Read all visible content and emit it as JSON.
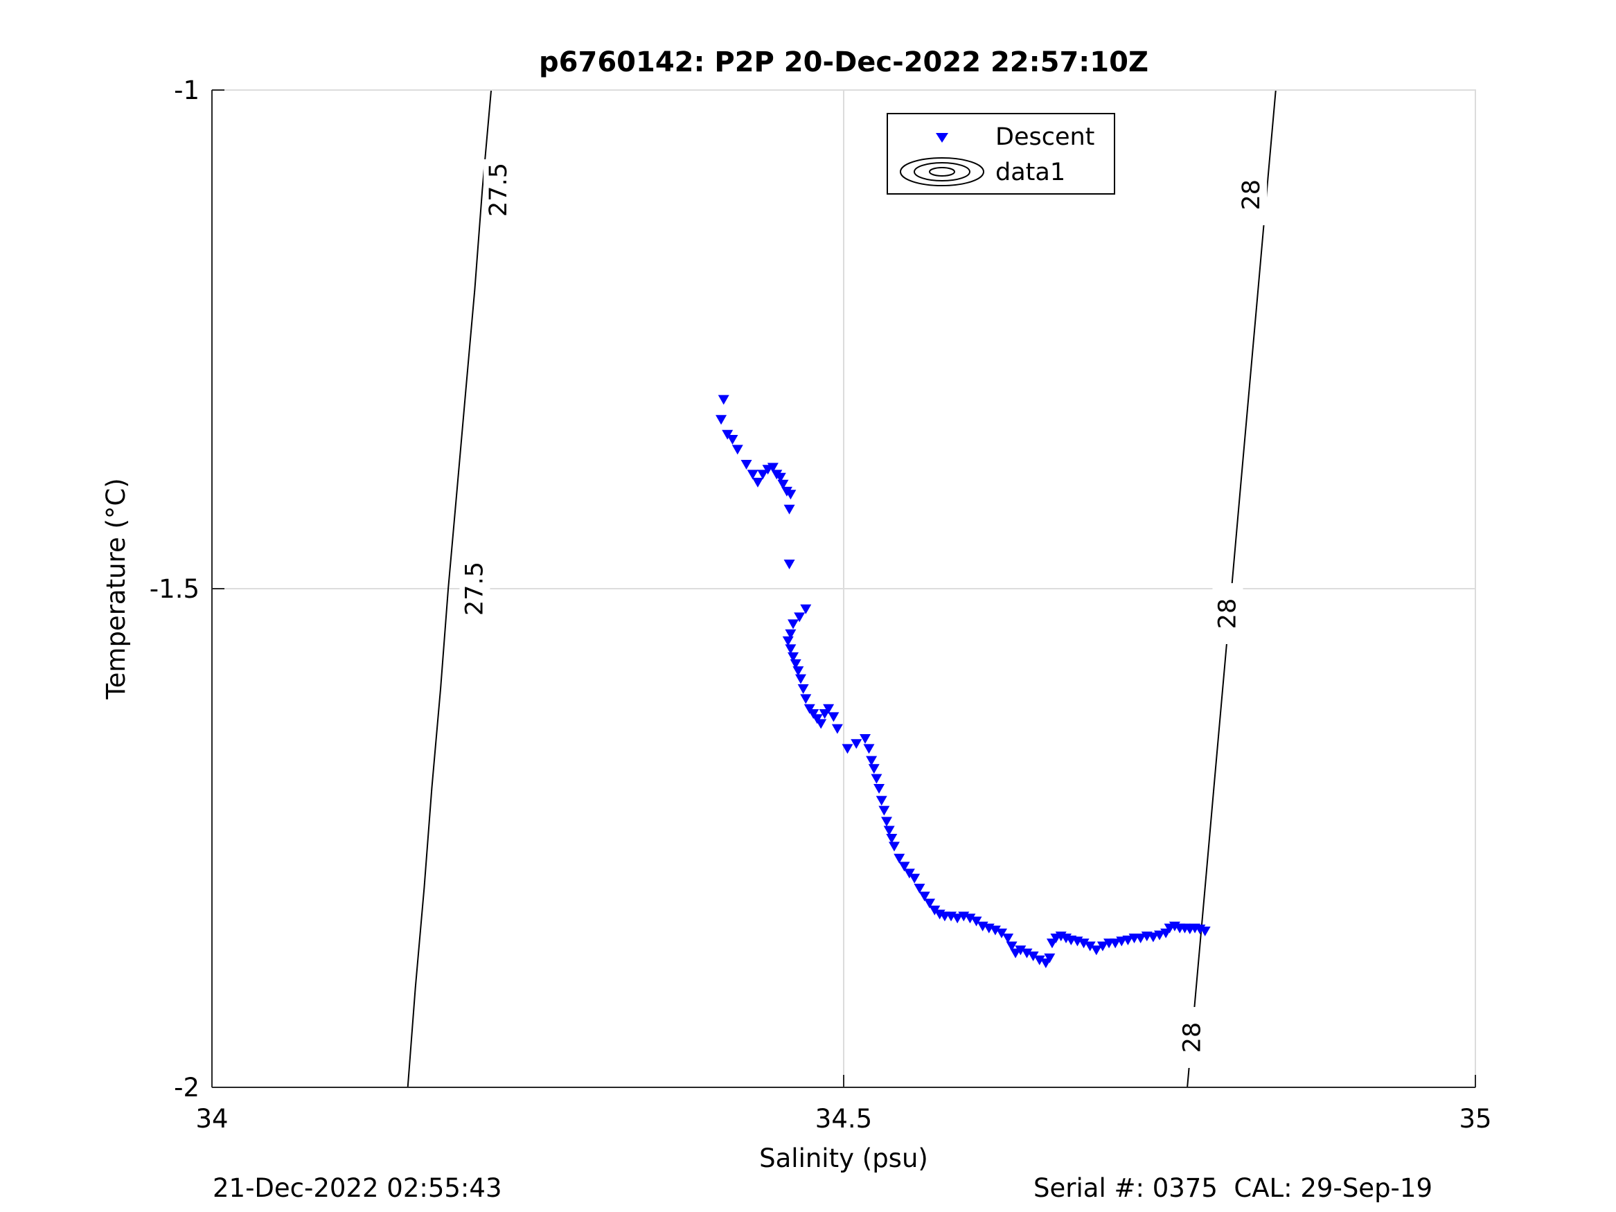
{
  "chart_data": {
    "type": "scatter",
    "title": "p6760142: P2P 20-Dec-2022 22:57:10Z",
    "xlabel": "Salinity (psu)",
    "ylabel": "Temperature (°C)",
    "xlim": [
      34,
      35
    ],
    "ylim": [
      -2,
      -1
    ],
    "xticks": [
      "34",
      "34.5",
      "35"
    ],
    "yticks": [
      "-1",
      "-1.5",
      "-2"
    ],
    "grid": true,
    "legend": {
      "placement": "top-center",
      "entries": [
        "Descent",
        "data1"
      ]
    },
    "series": [
      {
        "name": "Descent",
        "marker": "triangle-down",
        "color": "#0000ff",
        "points": [
          [
            34.405,
            -1.31
          ],
          [
            34.403,
            -1.33
          ],
          [
            34.408,
            -1.345
          ],
          [
            34.412,
            -1.35
          ],
          [
            34.416,
            -1.36
          ],
          [
            34.423,
            -1.375
          ],
          [
            34.428,
            -1.385
          ],
          [
            34.432,
            -1.393
          ],
          [
            34.436,
            -1.385
          ],
          [
            34.44,
            -1.38
          ],
          [
            34.444,
            -1.378
          ],
          [
            34.447,
            -1.385
          ],
          [
            34.45,
            -1.388
          ],
          [
            34.452,
            -1.395
          ],
          [
            34.455,
            -1.402
          ],
          [
            34.458,
            -1.405
          ],
          [
            34.457,
            -1.42
          ],
          [
            34.457,
            -1.475
          ],
          [
            34.47,
            -1.52
          ],
          [
            34.465,
            -1.528
          ],
          [
            34.46,
            -1.535
          ],
          [
            34.458,
            -1.545
          ],
          [
            34.456,
            -1.552
          ],
          [
            34.458,
            -1.56
          ],
          [
            34.46,
            -1.568
          ],
          [
            34.462,
            -1.575
          ],
          [
            34.464,
            -1.582
          ],
          [
            34.466,
            -1.59
          ],
          [
            34.468,
            -1.6
          ],
          [
            34.47,
            -1.61
          ],
          [
            34.473,
            -1.62
          ],
          [
            34.476,
            -1.625
          ],
          [
            34.479,
            -1.63
          ],
          [
            34.482,
            -1.635
          ],
          [
            34.485,
            -1.625
          ],
          [
            34.488,
            -1.62
          ],
          [
            34.492,
            -1.628
          ],
          [
            34.495,
            -1.64
          ],
          [
            34.503,
            -1.66
          ],
          [
            34.51,
            -1.655
          ],
          [
            34.517,
            -1.65
          ],
          [
            34.52,
            -1.66
          ],
          [
            34.522,
            -1.672
          ],
          [
            34.524,
            -1.68
          ],
          [
            34.526,
            -1.69
          ],
          [
            34.528,
            -1.7
          ],
          [
            34.53,
            -1.712
          ],
          [
            34.532,
            -1.722
          ],
          [
            34.534,
            -1.733
          ],
          [
            34.536,
            -1.742
          ],
          [
            34.538,
            -1.75
          ],
          [
            34.54,
            -1.758
          ],
          [
            34.544,
            -1.77
          ],
          [
            34.548,
            -1.778
          ],
          [
            34.552,
            -1.785
          ],
          [
            34.556,
            -1.79
          ],
          [
            34.56,
            -1.8
          ],
          [
            34.564,
            -1.808
          ],
          [
            34.568,
            -1.815
          ],
          [
            34.572,
            -1.822
          ],
          [
            34.576,
            -1.826
          ],
          [
            34.58,
            -1.828
          ],
          [
            34.585,
            -1.828
          ],
          [
            34.59,
            -1.83
          ],
          [
            34.595,
            -1.828
          ],
          [
            34.6,
            -1.83
          ],
          [
            34.605,
            -1.833
          ],
          [
            34.61,
            -1.838
          ],
          [
            34.615,
            -1.84
          ],
          [
            34.62,
            -1.842
          ],
          [
            34.625,
            -1.845
          ],
          [
            34.63,
            -1.85
          ],
          [
            34.633,
            -1.858
          ],
          [
            34.636,
            -1.865
          ],
          [
            34.64,
            -1.862
          ],
          [
            34.645,
            -1.865
          ],
          [
            34.65,
            -1.868
          ],
          [
            34.655,
            -1.872
          ],
          [
            34.66,
            -1.875
          ],
          [
            34.663,
            -1.87
          ],
          [
            34.665,
            -1.855
          ],
          [
            34.668,
            -1.85
          ],
          [
            34.672,
            -1.848
          ],
          [
            34.676,
            -1.85
          ],
          [
            34.68,
            -1.852
          ],
          [
            34.685,
            -1.853
          ],
          [
            34.69,
            -1.855
          ],
          [
            34.695,
            -1.858
          ],
          [
            34.7,
            -1.862
          ],
          [
            34.705,
            -1.858
          ],
          [
            34.71,
            -1.855
          ],
          [
            34.715,
            -1.855
          ],
          [
            34.72,
            -1.853
          ],
          [
            34.725,
            -1.852
          ],
          [
            34.73,
            -1.85
          ],
          [
            34.735,
            -1.85
          ],
          [
            34.74,
            -1.848
          ],
          [
            34.745,
            -1.849
          ],
          [
            34.75,
            -1.847
          ],
          [
            34.755,
            -1.845
          ],
          [
            34.758,
            -1.84
          ],
          [
            34.762,
            -1.838
          ],
          [
            34.766,
            -1.84
          ],
          [
            34.77,
            -1.84
          ],
          [
            34.774,
            -1.841
          ],
          [
            34.778,
            -1.84
          ],
          [
            34.782,
            -1.841
          ],
          [
            34.786,
            -1.843
          ]
        ]
      }
    ],
    "contours": [
      {
        "label": "27.5",
        "points": [
          [
            34.155,
            -2.0
          ],
          [
            34.161,
            -1.9
          ],
          [
            34.168,
            -1.8
          ],
          [
            34.174,
            -1.7
          ],
          [
            34.181,
            -1.6
          ],
          [
            34.187,
            -1.5
          ],
          [
            34.194,
            -1.4
          ],
          [
            34.201,
            -1.3
          ],
          [
            34.208,
            -1.2
          ],
          [
            34.214,
            -1.1
          ],
          [
            34.221,
            -1.0
          ]
        ],
        "label_positions": [
          [
            34.208,
            -1.5
          ],
          [
            34.227,
            -1.1
          ]
        ]
      },
      {
        "label": "28",
        "points": [
          [
            34.772,
            -2.0
          ],
          [
            34.779,
            -1.9
          ],
          [
            34.786,
            -1.8
          ],
          [
            34.793,
            -1.7
          ],
          [
            34.8,
            -1.6
          ],
          [
            34.807,
            -1.5
          ],
          [
            34.814,
            -1.4
          ],
          [
            34.821,
            -1.3
          ],
          [
            34.828,
            -1.2
          ],
          [
            34.835,
            -1.1
          ],
          [
            34.842,
            -1.0
          ]
        ],
        "label_positions": [
          [
            34.776,
            -1.95
          ],
          [
            34.804,
            -1.525
          ],
          [
            34.823,
            -1.105
          ]
        ]
      }
    ]
  },
  "footer": {
    "timestamp": "21-Dec-2022 02:55:43",
    "serial": "Serial #: 0375  CAL: 29-Sep-19"
  }
}
